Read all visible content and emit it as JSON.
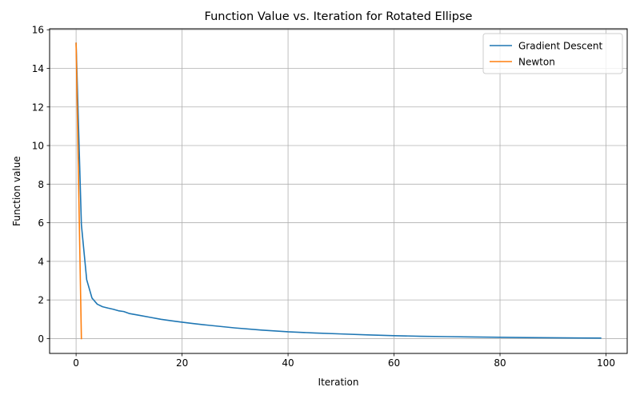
{
  "chart_data": {
    "type": "line",
    "title": "Function Value vs. Iteration for Rotated Ellipse",
    "xlabel": "Iteration",
    "ylabel": "Function value",
    "xlim": [
      -5,
      104
    ],
    "ylim": [
      -0.77,
      16.05
    ],
    "xticks": [
      0,
      20,
      40,
      60,
      80,
      100
    ],
    "yticks": [
      0,
      2,
      4,
      6,
      8,
      10,
      12,
      14,
      16
    ],
    "grid": true,
    "legend": "top-right",
    "series": [
      {
        "name": "Gradient Descent",
        "color": "#1f77b4",
        "x": [
          0,
          1,
          2,
          3,
          4,
          5,
          6,
          7,
          8,
          9,
          10,
          12,
          14,
          16,
          18,
          20,
          22,
          25,
          30,
          35,
          40,
          45,
          50,
          55,
          60,
          65,
          70,
          75,
          80,
          85,
          90,
          95,
          99
        ],
        "y": [
          15.3,
          5.9,
          3.05,
          2.1,
          1.78,
          1.65,
          1.58,
          1.52,
          1.44,
          1.4,
          1.3,
          1.2,
          1.1,
          1.0,
          0.92,
          0.85,
          0.78,
          0.69,
          0.55,
          0.44,
          0.35,
          0.29,
          0.24,
          0.19,
          0.15,
          0.12,
          0.1,
          0.08,
          0.065,
          0.05,
          0.04,
          0.03,
          0.025
        ]
      },
      {
        "name": "Newton",
        "color": "#ff7f0e",
        "x": [
          0,
          1
        ],
        "y": [
          15.3,
          0.0
        ]
      }
    ]
  }
}
